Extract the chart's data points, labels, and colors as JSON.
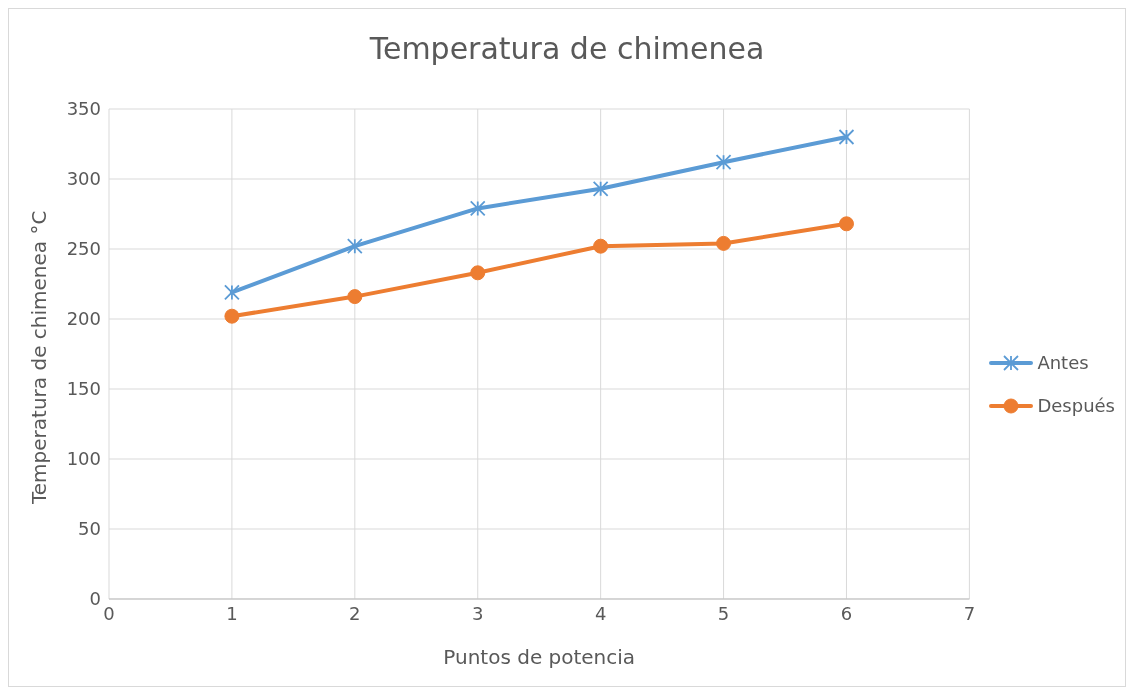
{
  "chart_data": {
    "type": "line",
    "title": "Temperatura de chimenea",
    "xlabel": "Puntos de potencia",
    "ylabel": "Temperatura de chimenea °C",
    "x": [
      1,
      2,
      3,
      4,
      5,
      6
    ],
    "series": [
      {
        "name": "Antes",
        "color": "#5b9bd5",
        "marker": "cross",
        "values": [
          219,
          252,
          279,
          293,
          312,
          330
        ]
      },
      {
        "name": "Después",
        "color": "#ed7d31",
        "marker": "circle",
        "values": [
          202,
          216,
          233,
          252,
          254,
          268
        ]
      }
    ],
    "xlim": [
      0,
      7
    ],
    "xticks": [
      0,
      1,
      2,
      3,
      4,
      5,
      6,
      7
    ],
    "ylim": [
      0,
      350
    ],
    "yticks": [
      0,
      50,
      100,
      150,
      200,
      250,
      300,
      350
    ],
    "grid": true,
    "legend": "right",
    "line_style": "solid"
  }
}
